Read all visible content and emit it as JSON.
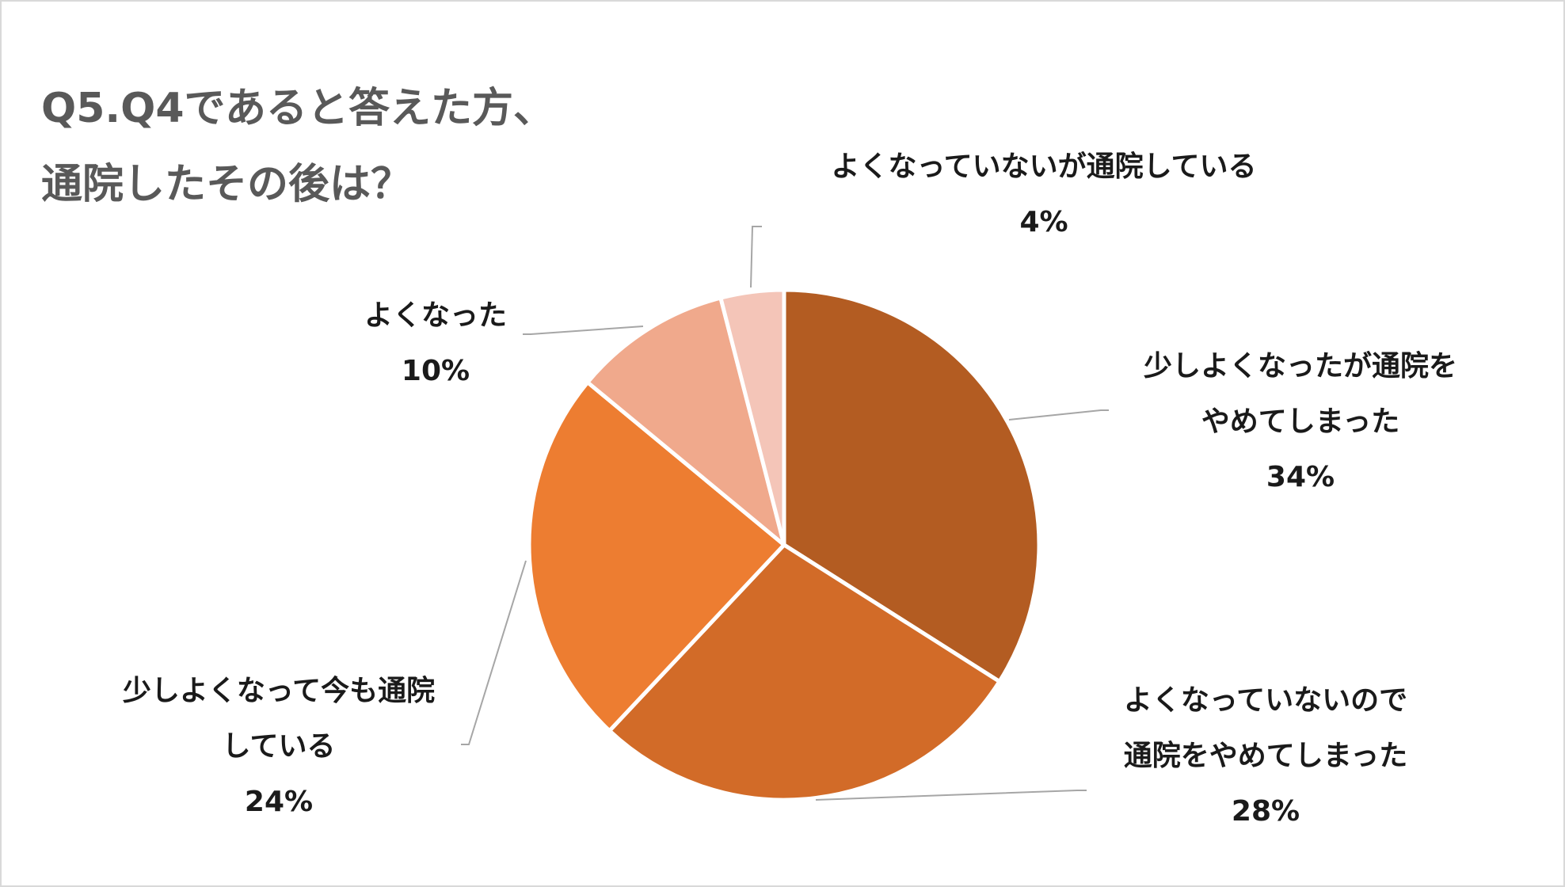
{
  "title": {
    "line1": "Q5.Q4であると答えた方、",
    "line2": "通院したその後は？"
  },
  "chart_data": {
    "type": "pie",
    "start_angle_deg": 0,
    "direction": "clockwise",
    "slices": [
      {
        "label_lines": [
          "少しよくなったが通院を",
          "やめてしまった"
        ],
        "value": 34,
        "pct_label": "34%",
        "color": "#b35c22"
      },
      {
        "label_lines": [
          "よくなっていないので",
          "通院をやめてしまった"
        ],
        "value": 28,
        "pct_label": "28%",
        "color": "#d26b28"
      },
      {
        "label_lines": [
          "少しよくなって今も通院",
          "している"
        ],
        "value": 24,
        "pct_label": "24%",
        "color": "#ed7d31"
      },
      {
        "label_lines": [
          "よくなった"
        ],
        "value": 10,
        "pct_label": "10%",
        "color": "#f0a98c"
      },
      {
        "label_lines": [
          "よくなっていないが通院している"
        ],
        "value": 4,
        "pct_label": "4%",
        "color": "#f4c5b8"
      }
    ],
    "slice_border_color": "#ffffff",
    "leader_line_color": "#a6a6a6"
  }
}
